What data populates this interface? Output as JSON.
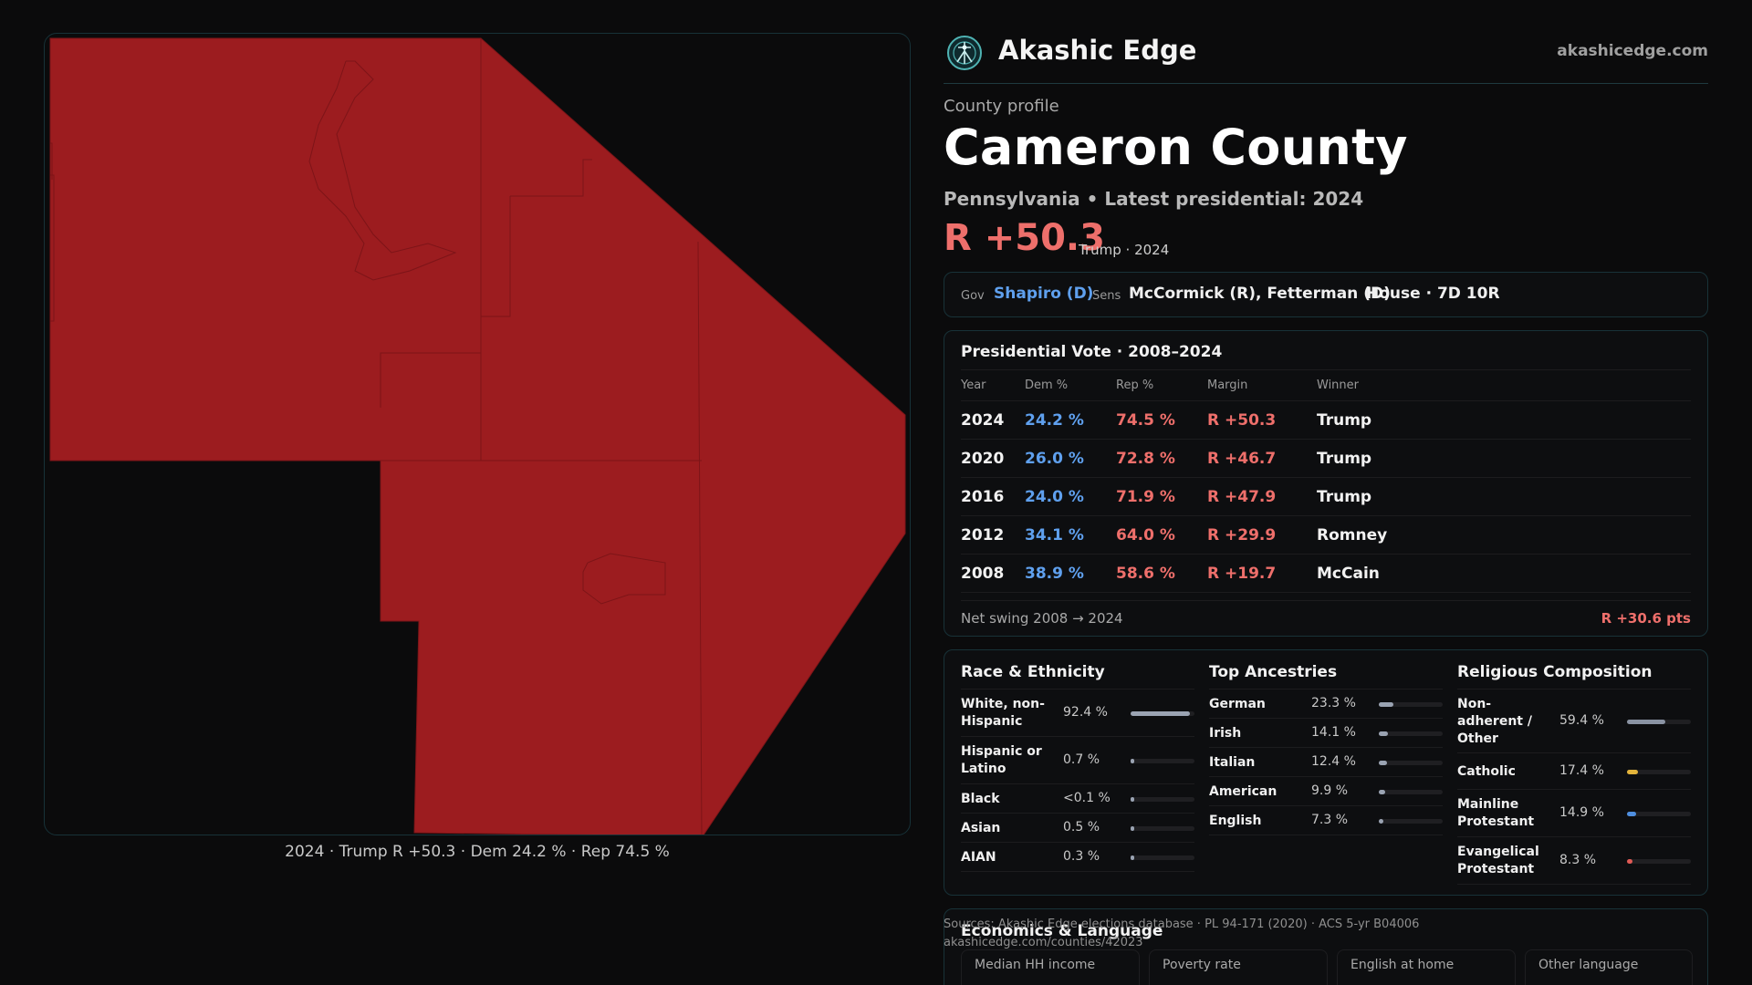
{
  "brand": {
    "name": "Akashic Edge",
    "url": "akashicedge.com",
    "logo_icon": "akashic-logo-icon"
  },
  "profile": {
    "eyebrow": "County profile",
    "title": "Cameron County",
    "subtitle": "Pennsylvania • Latest presidential: 2024",
    "margin": "R +50.3",
    "margin_note": "Trump · 2024"
  },
  "officials": {
    "gov_label": "Gov",
    "gov_value": "Shapiro (D)",
    "sens_label": "Sens",
    "sens_value": "McCormick (R), Fetterman (D)",
    "house_value": "House · 7D 10R"
  },
  "presidential": {
    "title": "Presidential Vote · 2008–2024",
    "headers": [
      "Year",
      "Dem %",
      "Rep %",
      "Margin",
      "Winner"
    ],
    "rows": [
      {
        "year": "2024",
        "dem": "24.2 %",
        "rep": "74.5 %",
        "margin": "R +50.3",
        "winner": "Trump"
      },
      {
        "year": "2020",
        "dem": "26.0 %",
        "rep": "72.8 %",
        "margin": "R +46.7",
        "winner": "Trump"
      },
      {
        "year": "2016",
        "dem": "24.0 %",
        "rep": "71.9 %",
        "margin": "R +47.9",
        "winner": "Trump"
      },
      {
        "year": "2012",
        "dem": "34.1 %",
        "rep": "64.0 %",
        "margin": "R +29.9",
        "winner": "Romney"
      },
      {
        "year": "2008",
        "dem": "38.9 %",
        "rep": "58.6 %",
        "margin": "R +19.7",
        "winner": "McCain"
      }
    ],
    "swing_label": "Net swing 2008 → 2024",
    "swing_value": "R +30.6 pts"
  },
  "race": {
    "title": "Race & Ethnicity",
    "rows": [
      {
        "label": "White, non-Hispanic",
        "value": "92.4 %",
        "pct": 92.4,
        "color": "#9aa3b2"
      },
      {
        "label": "Hispanic or Latino",
        "value": "0.7 %",
        "pct": 0.7,
        "color": "#9aa3b2"
      },
      {
        "label": "Black",
        "value": "<0.1 %",
        "pct": 0.05,
        "color": "#9aa3b2"
      },
      {
        "label": "Asian",
        "value": "0.5 %",
        "pct": 0.5,
        "color": "#9aa3b2"
      },
      {
        "label": "AIAN",
        "value": "0.3 %",
        "pct": 0.3,
        "color": "#9aa3b2"
      }
    ]
  },
  "ancestry": {
    "title": "Top Ancestries",
    "rows": [
      {
        "label": "German",
        "value": "23.3 %",
        "pct": 23.3,
        "color": "#9aa3b2"
      },
      {
        "label": "Irish",
        "value": "14.1 %",
        "pct": 14.1,
        "color": "#9aa3b2"
      },
      {
        "label": "Italian",
        "value": "12.4 %",
        "pct": 12.4,
        "color": "#9aa3b2"
      },
      {
        "label": "American",
        "value": "9.9 %",
        "pct": 9.9,
        "color": "#9aa3b2"
      },
      {
        "label": "English",
        "value": "7.3 %",
        "pct": 7.3,
        "color": "#9aa3b2"
      }
    ]
  },
  "religion": {
    "title": "Religious Composition",
    "rows": [
      {
        "label": "Non-adherent / Other",
        "value": "59.4 %",
        "pct": 59.4,
        "color": "#8a93a3"
      },
      {
        "label": "Catholic",
        "value": "17.4 %",
        "pct": 17.4,
        "color": "#e3b43b"
      },
      {
        "label": "Mainline Protestant",
        "value": "14.9 %",
        "pct": 14.9,
        "color": "#4f8fe0"
      },
      {
        "label": "Evangelical Protestant",
        "value": "8.3 %",
        "pct": 8.3,
        "color": "#e05a55"
      }
    ]
  },
  "economics": {
    "title": "Economics & Language",
    "labels": [
      "Median HH income",
      "Poverty rate",
      "English at home",
      "Other language"
    ]
  },
  "sources": {
    "line1": "Sources: Akashic Edge elections database · PL 94-171 (2020) · ACS 5-yr B04006",
    "line2": "akashicedge.com/counties/42023"
  },
  "map": {
    "caption": "2024 · Trump R +50.3 · Dem 24.2 % · Rep 74.5 %",
    "fill_color": "#9c1c1f"
  }
}
